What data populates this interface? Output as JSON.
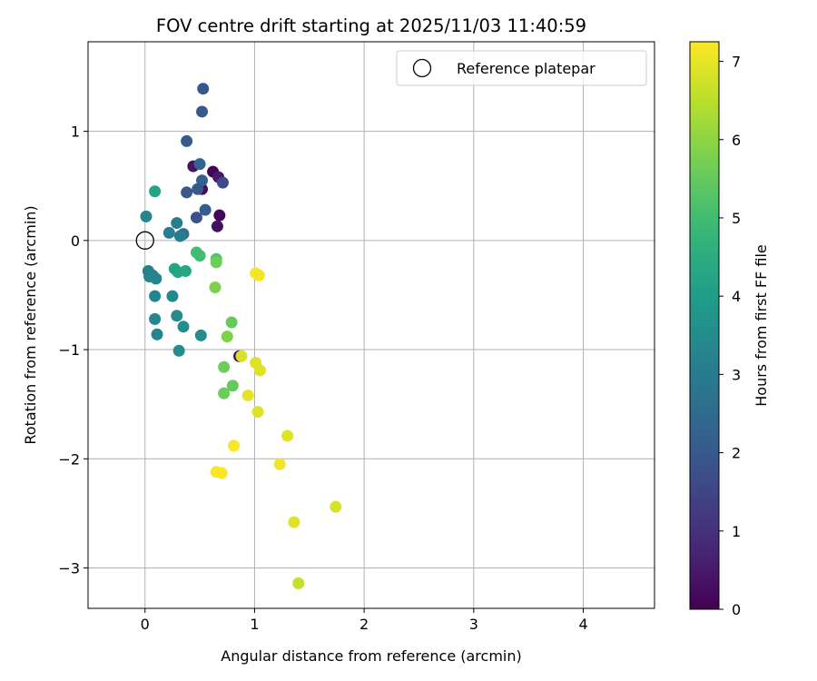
{
  "chart_data": {
    "type": "scatter",
    "title": "FOV centre drift starting at 2025/11/03 11:40:59",
    "xlabel": "Angular distance from reference (arcmin)",
    "ylabel": "Rotation from reference (arcmin)",
    "xlim": [
      -0.52,
      4.65
    ],
    "ylim": [
      -3.37,
      1.82
    ],
    "xticks": [
      0,
      1,
      2,
      3,
      4
    ],
    "yticks": [
      1,
      0,
      -1,
      -2,
      -3
    ],
    "grid": true,
    "legend": {
      "position": "top-right",
      "entries": [
        "Reference platepar"
      ]
    },
    "reference_point": {
      "x": 0,
      "y": 0
    },
    "colorbar": {
      "label": "Hours from first FF file",
      "range": [
        0,
        7.25
      ],
      "ticks": [
        0,
        1,
        2,
        3,
        4,
        5,
        6,
        7
      ],
      "colormap": "viridis"
    },
    "points": [
      {
        "x": 0.62,
        "y": 0.63,
        "t": 0.05
      },
      {
        "x": 0.68,
        "y": 0.23,
        "t": 0.1
      },
      {
        "x": 0.66,
        "y": 0.13,
        "t": 0.3
      },
      {
        "x": 0.52,
        "y": 0.47,
        "t": 0.2
      },
      {
        "x": 0.44,
        "y": 0.68,
        "t": 0.4
      },
      {
        "x": 0.67,
        "y": 0.58,
        "t": 0.5
      },
      {
        "x": 0.86,
        "y": -1.06,
        "t": 0.2
      },
      {
        "x": 0.71,
        "y": 0.53,
        "t": 1.6
      },
      {
        "x": 0.53,
        "y": 1.39,
        "t": 2.0
      },
      {
        "x": 0.52,
        "y": 1.18,
        "t": 2.05
      },
      {
        "x": 0.38,
        "y": 0.91,
        "t": 2.1
      },
      {
        "x": 0.5,
        "y": 0.7,
        "t": 2.4
      },
      {
        "x": 0.52,
        "y": 0.55,
        "t": 2.2
      },
      {
        "x": 0.48,
        "y": 0.47,
        "t": 2.0
      },
      {
        "x": 0.38,
        "y": 0.44,
        "t": 2.0
      },
      {
        "x": 0.55,
        "y": 0.28,
        "t": 2.1
      },
      {
        "x": 0.47,
        "y": 0.21,
        "t": 1.8
      },
      {
        "x": 0.29,
        "y": 0.16,
        "t": 3.0
      },
      {
        "x": 0.22,
        "y": 0.07,
        "t": 3.1
      },
      {
        "x": 0.35,
        "y": 0.06,
        "t": 2.7
      },
      {
        "x": 0.32,
        "y": 0.04,
        "t": 3.0
      },
      {
        "x": 0.01,
        "y": 0.22,
        "t": 3.3
      },
      {
        "x": 0.09,
        "y": 0.45,
        "t": 4.2
      },
      {
        "x": 0.03,
        "y": -0.28,
        "t": 3.2
      },
      {
        "x": 0.04,
        "y": -0.33,
        "t": 3.2
      },
      {
        "x": 0.07,
        "y": -0.32,
        "t": 3.3
      },
      {
        "x": 0.1,
        "y": -0.35,
        "t": 3.3
      },
      {
        "x": 0.09,
        "y": -0.51,
        "t": 3.3
      },
      {
        "x": 0.25,
        "y": -0.51,
        "t": 3.4
      },
      {
        "x": 0.09,
        "y": -0.72,
        "t": 3.4
      },
      {
        "x": 0.11,
        "y": -0.86,
        "t": 3.3
      },
      {
        "x": 0.29,
        "y": -0.69,
        "t": 3.5
      },
      {
        "x": 0.35,
        "y": -0.79,
        "t": 3.6
      },
      {
        "x": 0.31,
        "y": -1.01,
        "t": 3.5
      },
      {
        "x": 0.51,
        "y": -0.87,
        "t": 3.5
      },
      {
        "x": 0.27,
        "y": -0.26,
        "t": 4.3
      },
      {
        "x": 0.3,
        "y": -0.29,
        "t": 4.2
      },
      {
        "x": 0.37,
        "y": -0.28,
        "t": 4.3
      },
      {
        "x": 0.47,
        "y": -0.11,
        "t": 5.0
      },
      {
        "x": 0.5,
        "y": -0.14,
        "t": 5.0
      },
      {
        "x": 0.65,
        "y": -0.17,
        "t": 5.3
      },
      {
        "x": 0.65,
        "y": -0.2,
        "t": 5.6
      },
      {
        "x": 0.64,
        "y": -0.43,
        "t": 5.8
      },
      {
        "x": 0.79,
        "y": -0.75,
        "t": 5.5
      },
      {
        "x": 0.75,
        "y": -0.88,
        "t": 5.8
      },
      {
        "x": 0.72,
        "y": -1.16,
        "t": 5.6
      },
      {
        "x": 0.8,
        "y": -1.33,
        "t": 5.5
      },
      {
        "x": 0.72,
        "y": -1.4,
        "t": 5.6
      },
      {
        "x": 0.88,
        "y": -1.06,
        "t": 6.8
      },
      {
        "x": 1.01,
        "y": -1.12,
        "t": 6.9
      },
      {
        "x": 1.05,
        "y": -1.19,
        "t": 6.9
      },
      {
        "x": 0.94,
        "y": -1.42,
        "t": 7.0
      },
      {
        "x": 1.03,
        "y": -1.57,
        "t": 6.9
      },
      {
        "x": 1.01,
        "y": -0.3,
        "t": 7.2
      },
      {
        "x": 1.04,
        "y": -0.32,
        "t": 7.1
      },
      {
        "x": 0.81,
        "y": -1.88,
        "t": 7.2
      },
      {
        "x": 1.3,
        "y": -1.79,
        "t": 6.9
      },
      {
        "x": 1.23,
        "y": -2.05,
        "t": 7.1
      },
      {
        "x": 0.65,
        "y": -2.12,
        "t": 7.2
      },
      {
        "x": 0.7,
        "y": -2.13,
        "t": 7.2
      },
      {
        "x": 1.74,
        "y": -2.44,
        "t": 6.8
      },
      {
        "x": 1.36,
        "y": -2.58,
        "t": 6.9
      },
      {
        "x": 1.4,
        "y": -3.14,
        "t": 6.6
      }
    ]
  }
}
